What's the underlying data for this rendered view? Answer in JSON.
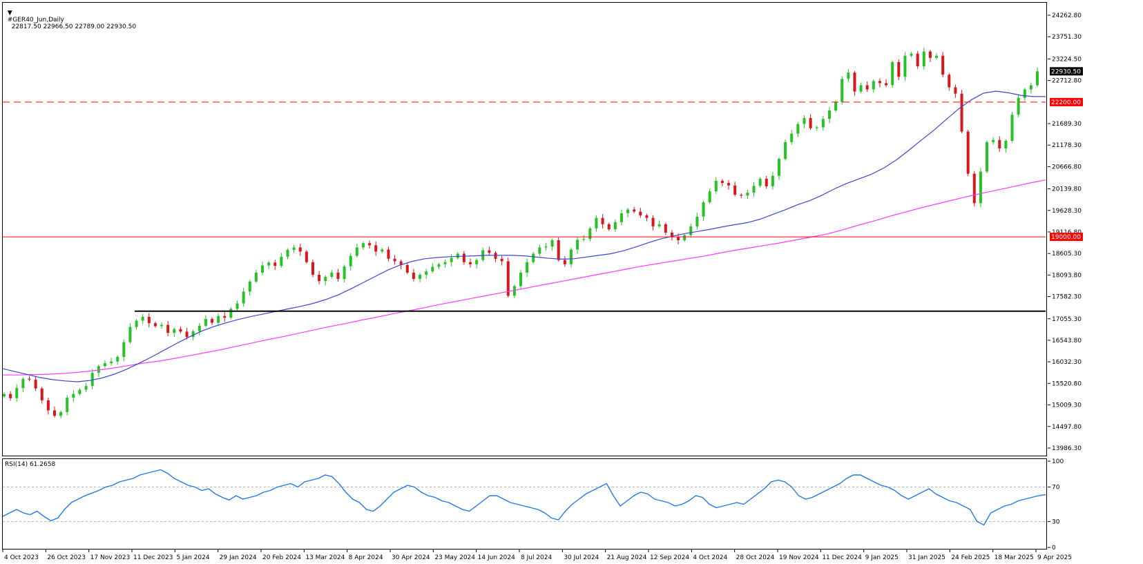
{
  "header": {
    "symbol": "#GER40_Jun,Daily",
    "ohlc": "22817.50 22966.50 22789.00 22930.50"
  },
  "rsi_label": "RSI(14) 61.2658",
  "colors": {
    "bull": "#26c226",
    "bear": "#d9161a",
    "ma_blue": "#3c46d2",
    "ma_magenta": "#ff38ff",
    "rsi": "#1e78e6",
    "hline_red": "#ff0000",
    "hline_black": "#000000"
  },
  "chart_data": {
    "type": "candlestick",
    "price_axis": [
      "24262.80",
      "23751.30",
      "23224.50",
      "22712.80",
      "22200.00",
      "21689.30",
      "21178.30",
      "20666.80",
      "20139.80",
      "19628.30",
      "19116.80",
      "19000.00",
      "18605.30",
      "18093.80",
      "17582.30",
      "17055.30",
      "16543.80",
      "16032.30",
      "15520.80",
      "15009.30",
      "14497.80",
      "13986.30"
    ],
    "price_axis_values": [
      24262.8,
      23751.3,
      23224.5,
      22712.8,
      21689.3,
      21178.3,
      20666.8,
      20139.8,
      19628.3,
      19116.8,
      18605.3,
      18093.8,
      17582.3,
      17055.3,
      16543.8,
      16032.3,
      15520.8,
      15009.3,
      14497.8,
      13986.3
    ],
    "current_price_label": "22930.50",
    "current_price": 22930.5,
    "levels": [
      {
        "label": "22200.00",
        "value": 22200,
        "style": "dashed",
        "color": "#ff0000"
      },
      {
        "label": "19000.00",
        "value": 19000,
        "style": "solid",
        "color": "#ff0000"
      }
    ],
    "support_line": {
      "value": 17235,
      "from": "11 Dec 2023",
      "to": "end",
      "color": "#000000"
    },
    "x_labels": [
      "4 Oct 2023",
      "26 Oct 2023",
      "17 Nov 2023",
      "11 Dec 2023",
      "5 Jan 2024",
      "29 Jan 2024",
      "20 Feb 2024",
      "13 Mar 2024",
      "8 Apr 2024",
      "30 Apr 2024",
      "23 May 2024",
      "14 Jun 2024",
      "8 Jul 2024",
      "30 Jul 2024",
      "21 Aug 2024",
      "12 Sep 2024",
      "4 Oct 2024",
      "28 Oct 2024",
      "19 Nov 2024",
      "11 Dec 2024",
      "9 Jan 2025",
      "31 Jan 2025",
      "24 Feb 2025",
      "18 Mar 2025",
      "9 Apr 2025"
    ],
    "closes": [
      15270,
      15170,
      15410,
      15630,
      15610,
      15400,
      15120,
      14880,
      14750,
      14840,
      15180,
      15270,
      15370,
      15460,
      15770,
      15930,
      16000,
      16040,
      16150,
      16500,
      16860,
      17010,
      17100,
      16950,
      16880,
      16910,
      16720,
      16810,
      16750,
      16620,
      16760,
      16890,
      17050,
      16960,
      17120,
      17080,
      17290,
      17420,
      17700,
      17940,
      18150,
      18320,
      18390,
      18310,
      18530,
      18690,
      18750,
      18650,
      18400,
      18100,
      17950,
      18050,
      18150,
      18000,
      18300,
      18550,
      18750,
      18850,
      18800,
      18650,
      18700,
      18480,
      18420,
      18330,
      18150,
      18000,
      18100,
      18180,
      18290,
      18350,
      18400,
      18500,
      18600,
      18400,
      18350,
      18450,
      18680,
      18620,
      18480,
      18420,
      17600,
      17830,
      18150,
      18400,
      18600,
      18750,
      18770,
      18920,
      18450,
      18350,
      18700,
      18930,
      18950,
      19200,
      19450,
      19300,
      19180,
      19350,
      19560,
      19650,
      19600,
      19510,
      19450,
      19250,
      19300,
      19100,
      18990,
      18920,
      19040,
      19250,
      19480,
      19820,
      20080,
      20330,
      20280,
      20220,
      20000,
      19980,
      20050,
      20210,
      20380,
      20200,
      20450,
      20850,
      21250,
      21450,
      21680,
      21820,
      21580,
      21600,
      21800,
      22000,
      22200,
      22750,
      22900,
      22450,
      22600,
      22500,
      22700,
      22650,
      22600,
      23150,
      22800,
      23300,
      23350,
      23050,
      23400,
      23250,
      23300,
      22850,
      22550,
      22400,
      21500,
      20500,
      19800,
      20550,
      21250,
      21300,
      21100,
      21280,
      21900,
      22300,
      22500,
      22600,
      22930
    ],
    "ma_blue": [
      15870,
      15800,
      15730,
      15660,
      15610,
      15580,
      15560,
      15590,
      15650,
      15740,
      15860,
      16000,
      16150,
      16310,
      16470,
      16620,
      16760,
      16870,
      16960,
      17040,
      17110,
      17170,
      17230,
      17290,
      17350,
      17420,
      17510,
      17620,
      17760,
      17910,
      18060,
      18210,
      18330,
      18420,
      18480,
      18510,
      18530,
      18540,
      18550,
      18560,
      18560,
      18560,
      18550,
      18520,
      18490,
      18470,
      18480,
      18520,
      18560,
      18600,
      18670,
      18760,
      18860,
      18950,
      19020,
      19080,
      19130,
      19180,
      19240,
      19290,
      19340,
      19420,
      19530,
      19640,
      19760,
      19860,
      19990,
      20140,
      20270,
      20380,
      20490,
      20640,
      20830,
      21060,
      21300,
      21530,
      21790,
      22040,
      22250,
      22410,
      22460,
      22420,
      22360,
      22330,
      22330
    ],
    "ma_magenta": [
      15720,
      15720,
      15730,
      15740,
      15760,
      15790,
      15830,
      15880,
      15940,
      16000,
      16050,
      16110,
      16180,
      16250,
      16320,
      16400,
      16480,
      16560,
      16630,
      16710,
      16790,
      16870,
      16940,
      17020,
      17090,
      17170,
      17240,
      17310,
      17390,
      17460,
      17530,
      17600,
      17670,
      17740,
      17810,
      17880,
      17950,
      18020,
      18090,
      18160,
      18230,
      18300,
      18360,
      18420,
      18480,
      18540,
      18610,
      18680,
      18740,
      18800,
      18860,
      18930,
      19000,
      19070,
      19170,
      19280,
      19380,
      19490,
      19590,
      19690,
      19780,
      19870,
      19960,
      20040,
      20120,
      20200,
      20280,
      20350
    ]
  },
  "rsi_data": {
    "axis": [
      "100",
      "70",
      "30",
      "0"
    ],
    "axis_values": [
      100,
      70,
      30,
      0
    ],
    "dotted_levels": [
      70,
      30
    ],
    "values": [
      36,
      40,
      44,
      40,
      38,
      42,
      36,
      31,
      34,
      44,
      52,
      56,
      60,
      63,
      66,
      70,
      72,
      76,
      78,
      80,
      84,
      86,
      88,
      90,
      86,
      80,
      76,
      72,
      70,
      66,
      68,
      62,
      58,
      55,
      60,
      56,
      58,
      60,
      64,
      66,
      70,
      72,
      74,
      70,
      76,
      78,
      80,
      84,
      82,
      74,
      64,
      56,
      52,
      44,
      42,
      48,
      56,
      64,
      68,
      72,
      70,
      64,
      60,
      58,
      54,
      52,
      48,
      44,
      42,
      48,
      54,
      60,
      60,
      56,
      52,
      50,
      48,
      46,
      44,
      40,
      34,
      32,
      42,
      50,
      56,
      62,
      66,
      70,
      74,
      60,
      48,
      54,
      60,
      64,
      62,
      56,
      54,
      52,
      48,
      50,
      54,
      60,
      58,
      50,
      46,
      48,
      50,
      52,
      50,
      56,
      62,
      68,
      76,
      78,
      76,
      70,
      60,
      56,
      58,
      62,
      66,
      70,
      74,
      80,
      84,
      84,
      80,
      76,
      72,
      70,
      66,
      60,
      56,
      60,
      64,
      68,
      62,
      58,
      54,
      52,
      48,
      44,
      30,
      26,
      40,
      44,
      48,
      50,
      54,
      56,
      58,
      60,
      61.2658
    ]
  }
}
